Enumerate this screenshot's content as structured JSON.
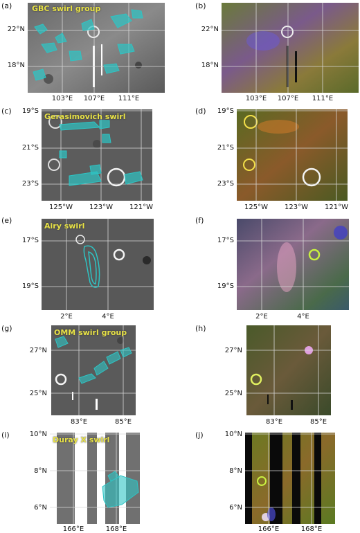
{
  "figure": {
    "rows": [
      {
        "left": {
          "label": "(a)",
          "title": "GBC swirl group",
          "style": "gray"
        },
        "right": {
          "label": "(b)",
          "style": "color"
        },
        "lat_ticks": [
          "22°N",
          "18°N"
        ],
        "lon_ticks": [
          "103°E",
          "107°E",
          "111°E"
        ]
      },
      {
        "left": {
          "label": "(c)",
          "title": "Gerasimovich swirl",
          "style": "gray"
        },
        "right": {
          "label": "(d)",
          "style": "color"
        },
        "lat_ticks": [
          "19°S",
          "21°S",
          "23°S"
        ],
        "lon_ticks": [
          "125°W",
          "123°W",
          "121°W"
        ]
      },
      {
        "left": {
          "label": "(e)",
          "title": "Airy swirl",
          "style": "gray"
        },
        "right": {
          "label": "(f)",
          "style": "color"
        },
        "lat_ticks": [
          "17°S",
          "19°S"
        ],
        "lon_ticks": [
          "2°E",
          "4°E"
        ]
      },
      {
        "left": {
          "label": "(g)",
          "title": "OMM swirl group",
          "style": "gray"
        },
        "right": {
          "label": "(h)",
          "style": "color"
        },
        "lat_ticks": [
          "27°N",
          "25°N"
        ],
        "lon_ticks": [
          "83°E",
          "85°E"
        ]
      },
      {
        "left": {
          "label": "(i)",
          "title": "Duray X swirl",
          "style": "gray"
        },
        "right": {
          "label": "(j)",
          "style": "color"
        },
        "lat_ticks": [
          "10°N",
          "8°N",
          "6°N"
        ],
        "lon_ticks": [
          "166°E",
          "168°E"
        ]
      }
    ],
    "colors": {
      "contour": "#2ec4c4",
      "title": "#e8e246",
      "grid": "#d8d8d8"
    }
  }
}
